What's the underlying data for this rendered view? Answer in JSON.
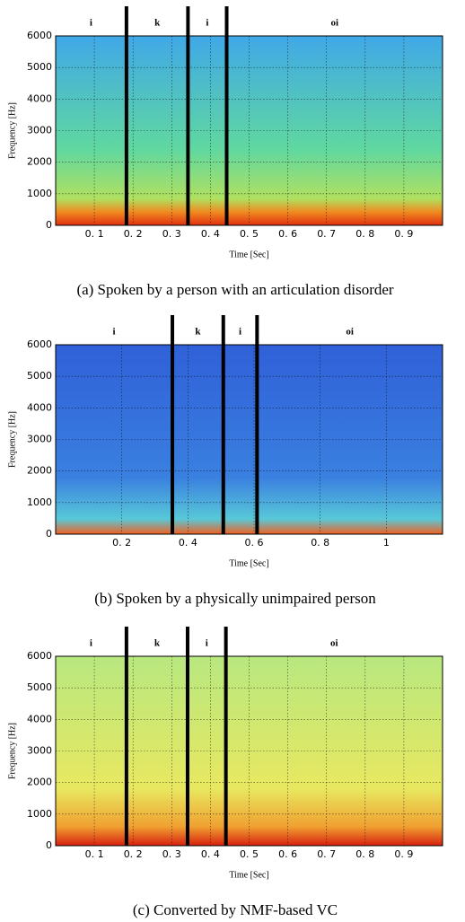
{
  "chart_data": [
    {
      "type": "spectrogram",
      "caption": "(a)  Spoken by a person with an articulation disorder",
      "xlabel": "Time [Sec]",
      "ylabel": "Frequency [Hz]",
      "xlim": [
        0,
        1.0
      ],
      "ylim": [
        0,
        6000
      ],
      "xticks": [
        {
          "value": 0.1,
          "label": "0. 1"
        },
        {
          "value": 0.2,
          "label": "0. 2"
        },
        {
          "value": 0.3,
          "label": "0. 3"
        },
        {
          "value": 0.4,
          "label": "0. 4"
        },
        {
          "value": 0.5,
          "label": "0. 5"
        },
        {
          "value": 0.6,
          "label": "0. 6"
        },
        {
          "value": 0.7,
          "label": "0. 7"
        },
        {
          "value": 0.8,
          "label": "0. 8"
        },
        {
          "value": 0.9,
          "label": "0. 9"
        }
      ],
      "yticks": [
        0,
        1000,
        2000,
        3000,
        4000,
        5000,
        6000
      ],
      "segments": [
        "i",
        "k",
        "i",
        "oi"
      ],
      "boundaries": [
        0.183,
        0.342,
        0.442
      ],
      "grid": true
    },
    {
      "type": "spectrogram",
      "caption": "(b)  Spoken by a physically unimpaired person",
      "xlabel": "Time [Sec]",
      "ylabel": "Frequency [Hz]",
      "xlim": [
        0,
        1.17
      ],
      "ylim": [
        0,
        6000
      ],
      "xticks": [
        {
          "value": 0.2,
          "label": "0. 2"
        },
        {
          "value": 0.4,
          "label": "0. 4"
        },
        {
          "value": 0.6,
          "label": "0. 6"
        },
        {
          "value": 0.8,
          "label": "0. 8"
        },
        1
      ],
      "yticks": [
        0,
        1000,
        2000,
        3000,
        4000,
        5000,
        6000
      ],
      "segments": [
        "i",
        "k",
        "i",
        "oi"
      ],
      "boundaries": [
        0.353,
        0.507,
        0.609
      ],
      "grid": true
    },
    {
      "type": "spectrogram",
      "caption": "(c)  Converted by NMF-based VC",
      "xlabel": "Time [Sec]",
      "ylabel": "Frequency [Hz]",
      "xlim": [
        0,
        1.0
      ],
      "ylim": [
        0,
        6000
      ],
      "xticks": [
        {
          "value": 0.1,
          "label": "0. 1"
        },
        {
          "value": 0.2,
          "label": "0. 2"
        },
        {
          "value": 0.3,
          "label": "0. 3"
        },
        {
          "value": 0.4,
          "label": "0. 4"
        },
        {
          "value": 0.5,
          "label": "0. 5"
        },
        {
          "value": 0.6,
          "label": "0. 6"
        },
        {
          "value": 0.7,
          "label": "0. 7"
        },
        {
          "value": 0.8,
          "label": "0. 8"
        },
        {
          "value": 0.9,
          "label": "0. 9"
        }
      ],
      "yticks": [
        0,
        1000,
        2000,
        3000,
        4000,
        5000,
        6000
      ],
      "segments": [
        "i",
        "k",
        "i",
        "oi"
      ],
      "boundaries": [
        0.183,
        0.341,
        0.44
      ],
      "grid": true
    }
  ]
}
